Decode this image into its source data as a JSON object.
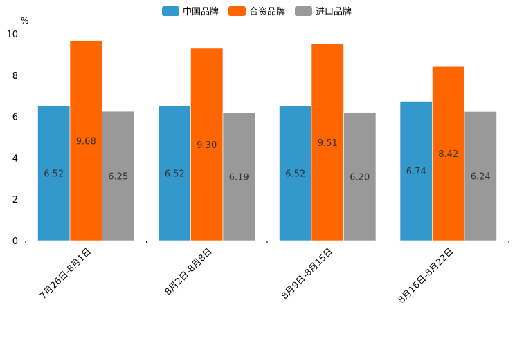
{
  "chart_data": {
    "type": "bar",
    "title": "",
    "xlabel": "",
    "ylabel": "%",
    "ylim": [
      0,
      10
    ],
    "yticks": [
      0,
      2,
      4,
      6,
      8,
      10
    ],
    "grid": false,
    "legend_position": "top-center",
    "categories": [
      "7月26日-8月1日",
      "8月2日-8月8日",
      "8月9日-8月15日",
      "8月16日-8月22日"
    ],
    "series": [
      {
        "name": "中国品牌",
        "color": "#3399cc",
        "values": [
          6.52,
          6.52,
          6.52,
          6.74
        ],
        "labels": [
          "6.52",
          "6.52",
          "6.52",
          "6.74"
        ]
      },
      {
        "name": "合资品牌",
        "color": "#ff6600",
        "values": [
          9.68,
          9.3,
          9.51,
          8.42
        ],
        "labels": [
          "9.68",
          "9.30",
          "9.51",
          "8.42"
        ]
      },
      {
        "name": "进口品牌",
        "color": "#999999",
        "values": [
          6.25,
          6.19,
          6.2,
          6.24
        ],
        "labels": [
          "6.25",
          "6.19",
          "6.20",
          "6.24"
        ]
      }
    ]
  }
}
